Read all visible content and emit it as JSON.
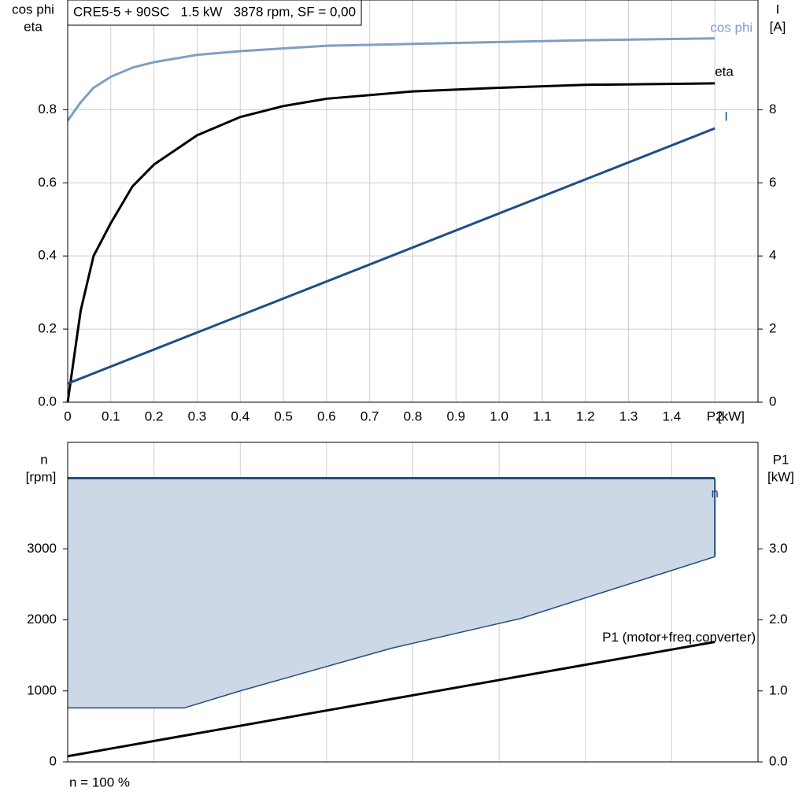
{
  "chart_data": [
    {
      "type": "line",
      "title": "CRE5-5 + 90SC   1.5 kW   3878 rpm, SF = 0,00",
      "y_label": [
        "cos phi",
        "eta"
      ],
      "y2_label": [
        "I",
        "[A]"
      ],
      "x_label": "[kW]",
      "xlim": [
        0,
        1.6
      ],
      "xticks": [
        0,
        0.1,
        0.2,
        0.3,
        0.4,
        0.5,
        0.6,
        0.7,
        0.8,
        0.9,
        {
          "value": 1,
          "label": "1.0"
        },
        1.1,
        1.2,
        1.3,
        1.4,
        {
          "value": 1.5,
          "label": "P2"
        }
      ],
      "ylim": [
        0,
        1.1
      ],
      "yticks": [
        {
          "value": 0,
          "label": "0.0"
        },
        0.2,
        0.4,
        0.6,
        0.8
      ],
      "y2lim": [
        0,
        11
      ],
      "y2ticks": [
        0,
        2,
        4,
        6,
        8
      ],
      "grid": true,
      "series": [
        {
          "name": "cos phi",
          "color": "#7f9fc2",
          "x": [
            0,
            0.03,
            0.06,
            0.1,
            0.15,
            0.2,
            0.3,
            0.4,
            0.6,
            0.8,
            1.0,
            1.2,
            1.5
          ],
          "values": [
            0.77,
            0.82,
            0.86,
            0.89,
            0.915,
            0.93,
            0.95,
            0.96,
            0.975,
            0.98,
            0.985,
            0.99,
            0.995
          ]
        },
        {
          "name": "eta",
          "color": "#000000",
          "x": [
            0,
            0.03,
            0.06,
            0.1,
            0.15,
            0.2,
            0.3,
            0.4,
            0.5,
            0.6,
            0.8,
            1.0,
            1.2,
            1.5
          ],
          "values": [
            0,
            0.25,
            0.4,
            0.49,
            0.59,
            0.65,
            0.73,
            0.78,
            0.81,
            0.83,
            0.85,
            0.86,
            0.868,
            0.872
          ]
        },
        {
          "name": "I",
          "color": "#1f4e85",
          "axis": "y2",
          "x": [
            0,
            1.5
          ],
          "values": [
            0.51,
            7.49
          ]
        }
      ]
    },
    {
      "type": "line",
      "y_label": [
        "n",
        "[rpm]"
      ],
      "y2_label": [
        "P1",
        "[kW]"
      ],
      "note": "n = 100 %",
      "xlim": [
        0,
        1.6
      ],
      "xgrid": [
        0.2,
        0.4,
        0.6,
        0.8,
        1.0,
        1.2,
        1.4
      ],
      "ylim": [
        0,
        4500
      ],
      "yticks": [
        0,
        1000,
        2000,
        3000
      ],
      "y2lim": [
        0,
        4.5
      ],
      "y2ticks": [
        {
          "value": 0,
          "label": "0.0"
        },
        {
          "value": 1,
          "label": "1.0"
        },
        {
          "value": 2,
          "label": "2.0"
        },
        {
          "value": 3,
          "label": "3.0"
        }
      ],
      "series": [
        {
          "name": "n",
          "color": "#1f4e85",
          "fill": "#ccd8e6",
          "x": [
            0,
            0.27,
            0.4,
            0.75,
            1.05,
            1.5
          ],
          "values": [
            3995,
            3995,
            3995,
            3995,
            3995,
            3995
          ],
          "lower": [
            760,
            760,
            1000,
            1600,
            2020,
            2890
          ]
        },
        {
          "name": "P1 (motor+freq.converter)",
          "color": "#000000",
          "axis": "y2",
          "x": [
            0,
            1.5
          ],
          "values": [
            0.08,
            1.69
          ]
        }
      ]
    }
  ]
}
